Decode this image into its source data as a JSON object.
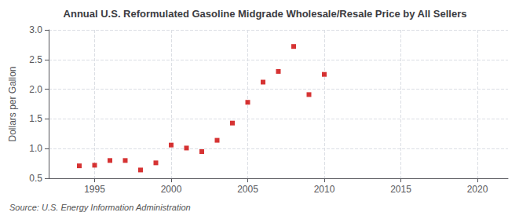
{
  "chart_data": {
    "type": "scatter",
    "title": "Annual U.S. Reformulated Gasoline Midgrade Wholesale/Resale Price by All Sellers",
    "ylabel": "Dollars per Gallon",
    "annotations": [
      "Source: U.S. Energy Information Administration"
    ],
    "x": [
      1994,
      1995,
      1996,
      1997,
      1998,
      1999,
      2000,
      2001,
      2002,
      2003,
      2004,
      2005,
      2006,
      2007,
      2008,
      2009,
      2010
    ],
    "values": [
      0.71,
      0.72,
      0.8,
      0.8,
      0.64,
      0.76,
      1.06,
      1.01,
      0.95,
      1.14,
      1.43,
      1.78,
      2.12,
      2.3,
      2.72,
      1.91,
      2.25
    ],
    "color": "#cc0000",
    "marker": "square",
    "xlim": [
      1992,
      2022
    ],
    "xticks": [
      1995,
      2000,
      2005,
      2010,
      2015,
      2020
    ],
    "ylim": [
      0.5,
      3.0
    ],
    "yticks": [
      0.5,
      {
        "value": 1.0,
        "label": "1.0"
      },
      1.5,
      {
        "value": 2.0,
        "label": "2.0"
      },
      2.5,
      {
        "value": 3.0,
        "label": "3.0"
      }
    ],
    "grid": true
  }
}
